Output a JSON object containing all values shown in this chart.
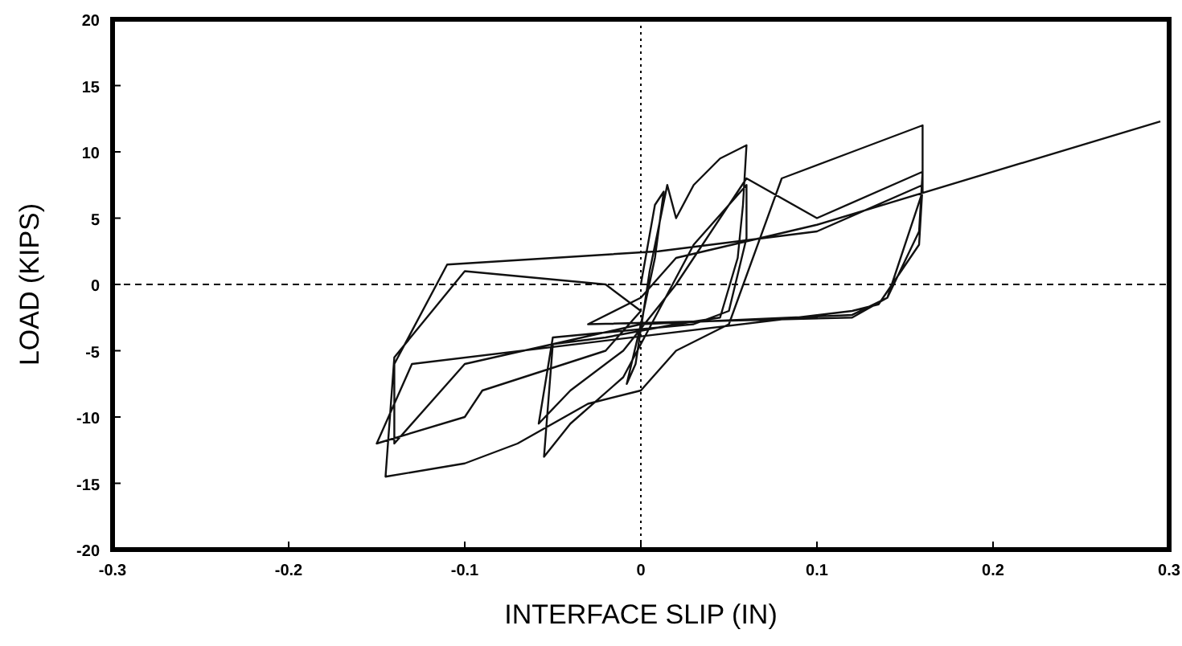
{
  "chart_data": {
    "type": "line",
    "xlabel": "INTERFACE SLIP (IN)",
    "ylabel": "LOAD (KIPS)",
    "xlim": [
      -0.3,
      0.3
    ],
    "ylim": [
      -20,
      20
    ],
    "xticks": [
      -0.3,
      -0.2,
      -0.1,
      0,
      0.1,
      0.2,
      0.3
    ],
    "yticks": [
      -20,
      -15,
      -10,
      -5,
      0,
      5,
      10,
      15,
      20
    ],
    "grid": false,
    "marker": "none",
    "line_style": "solid",
    "ref_lines": [
      {
        "axis": "x",
        "value": 0,
        "line_style": "dotted",
        "color": "#000000"
      },
      {
        "axis": "y",
        "value": 0,
        "line_style": "dashed",
        "color": "#000000"
      }
    ],
    "series": [
      {
        "color": "#111111",
        "x": [
          0,
          0.008,
          0.013,
          0.008,
          0,
          -0.008,
          -0.003,
          0.005,
          0.015,
          0.02,
          0.03,
          0.045,
          0.06,
          0.058,
          0.055,
          0.045,
          0.02,
          -0.02,
          -0.05,
          -0.055,
          -0.04,
          -0.01,
          0.01,
          0.03,
          0.06,
          0.06,
          0.05,
          0.03,
          -0.05,
          -0.058,
          -0.04,
          -0.01,
          0.02,
          0.06,
          0.1,
          0.16,
          0.158,
          0.14,
          0.12,
          0,
          -0.1,
          -0.14,
          -0.14,
          -0.11,
          0.01,
          0.1,
          0.16,
          0.158,
          0.135,
          0.12,
          -0.13,
          -0.15,
          -0.1,
          -0.09,
          -0.02,
          0,
          -0.02,
          -0.1,
          -0.14,
          -0.145,
          -0.1,
          -0.07,
          -0.03,
          0,
          0.02,
          0.05,
          0.08,
          0.12,
          0.16,
          0.16,
          0.14,
          0.12,
          -0.03,
          0,
          0.02,
          0.1,
          0.295
        ],
        "values": [
          0,
          6,
          7,
          2,
          -3,
          -7.5,
          -6,
          1,
          7.5,
          5,
          7.5,
          9.5,
          10.5,
          6,
          2,
          -2.5,
          -3,
          -4,
          -4.5,
          -13,
          -10.5,
          -7,
          -2,
          3,
          7.5,
          3.5,
          -2,
          -3,
          -4,
          -10.5,
          -8,
          -5,
          0,
          8,
          5,
          8.5,
          4,
          -1,
          -2.3,
          -3,
          -6,
          -12,
          -6,
          1.5,
          2.5,
          4,
          7.5,
          3,
          -1.5,
          -2,
          -6,
          -12,
          -10,
          -8,
          -5,
          -2,
          0,
          1,
          -5.5,
          -14.5,
          -13.5,
          -12,
          -9,
          -8,
          -5,
          -3,
          8,
          10,
          12,
          7,
          -1,
          -2.5,
          -3,
          -1,
          2,
          4.5,
          12.3
        ]
      }
    ]
  }
}
